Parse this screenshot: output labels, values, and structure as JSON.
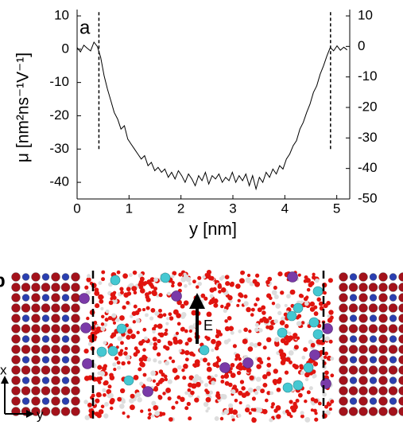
{
  "chart_data": {
    "type": "line",
    "panel_label": "a",
    "x_label": "y [nm]",
    "y_label": "μ [nm²ns⁻¹V⁻¹]",
    "x": [
      0,
      0.065,
      0.13,
      0.195,
      0.26,
      0.325,
      0.39,
      0.455,
      0.52,
      0.585,
      0.65,
      0.715,
      0.78,
      0.845,
      0.91,
      0.975,
      1.04,
      1.105,
      1.17,
      1.235,
      1.3,
      1.365,
      1.43,
      1.495,
      1.56,
      1.625,
      1.69,
      1.755,
      1.82,
      1.885,
      1.95,
      2.015,
      2.08,
      2.145,
      2.21,
      2.275,
      2.34,
      2.405,
      2.47,
      2.535,
      2.6,
      2.665,
      2.73,
      2.795,
      2.86,
      2.925,
      2.99,
      3.055,
      3.12,
      3.185,
      3.25,
      3.315,
      3.38,
      3.445,
      3.51,
      3.575,
      3.64,
      3.705,
      3.77,
      3.835,
      3.9,
      3.965,
      4.03,
      4.095,
      4.16,
      4.225,
      4.29,
      4.355,
      4.42,
      4.485,
      4.55,
      4.615,
      4.68,
      4.745,
      4.81,
      4.875,
      4.94,
      5.005,
      5.07,
      5.135,
      5.2
    ],
    "values": [
      0.5,
      -0.8,
      1.2,
      0.3,
      -0.5,
      2.1,
      0.8,
      -2.5,
      -8,
      -12,
      -15.5,
      -19,
      -21,
      -24,
      -23,
      -27,
      -28.5,
      -30,
      -31.5,
      -33,
      -32,
      -35,
      -34,
      -36.5,
      -35.5,
      -37,
      -36,
      -38.5,
      -37,
      -39,
      -36.5,
      -38,
      -40,
      -37.5,
      -39,
      -41,
      -38,
      -39.5,
      -37,
      -40.5,
      -38,
      -39,
      -37.5,
      -40,
      -38.5,
      -39.5,
      -37,
      -40,
      -38,
      -39.5,
      -37.5,
      -41,
      -38,
      -42,
      -38.5,
      -40,
      -37,
      -38.5,
      -36,
      -37.5,
      -35,
      -36,
      -33,
      -31.5,
      -29,
      -27.5,
      -24,
      -22,
      -19,
      -16.5,
      -13,
      -11,
      -7.5,
      -5,
      -2,
      0.5,
      -0.5,
      1,
      -0.3,
      0.6,
      -0.2
    ],
    "color": "#000000",
    "xlim": [
      0,
      5.25
    ],
    "xticks": [
      0,
      1,
      2,
      3,
      4,
      5
    ],
    "ylim": [
      -45,
      10
    ],
    "yticks": [
      10,
      0,
      -10,
      -20,
      -30,
      -40
    ],
    "y2lim": [
      -50,
      10
    ],
    "y2ticks": [
      10,
      0,
      -10,
      -20,
      -30,
      -40,
      -50
    ],
    "reference_lines": {
      "x": [
        0.42,
        4.88
      ],
      "y": [
        -30,
        11.5
      ]
    }
  },
  "figure_b": {
    "panel_label": "b",
    "field_label": "E",
    "axis_labels": [
      "x",
      "y"
    ]
  }
}
